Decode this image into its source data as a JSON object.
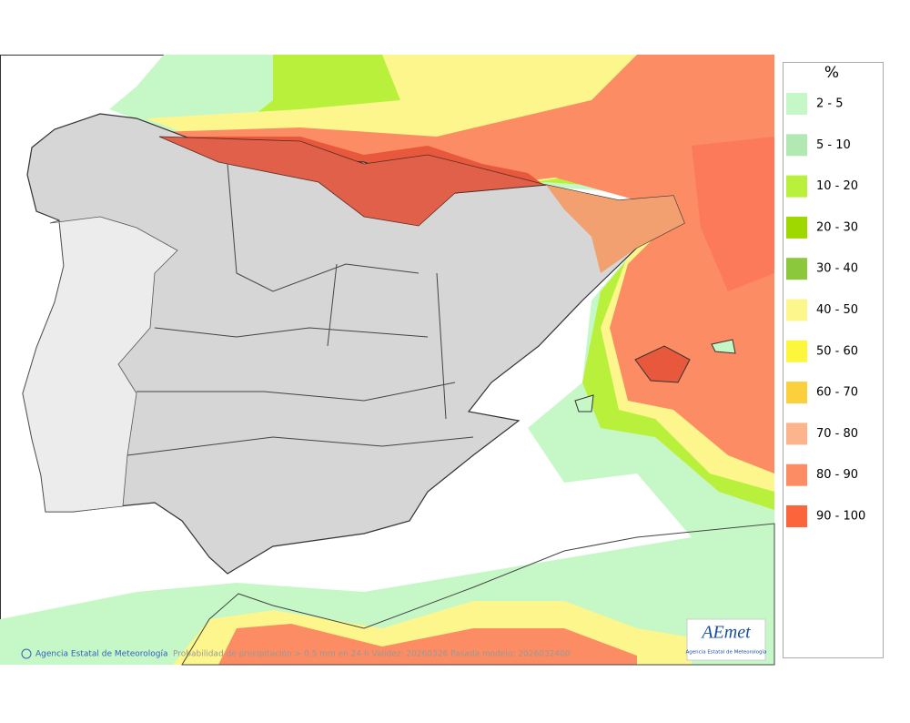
{
  "map": {
    "credit": "Agencia Estatal de Meteorología",
    "caption": "Probabilidad de precipitación > 0.5 mm en 24 h Validez: 20260326 Pasada modelo: 2026032400"
  },
  "legend": {
    "title": "%",
    "items": [
      {
        "label": "2 - 5",
        "color": "#c6f7c6"
      },
      {
        "label": "5 - 10",
        "color": "#b2e8b2"
      },
      {
        "label": "10 - 20",
        "color": "#b8f03c"
      },
      {
        "label": "20 - 30",
        "color": "#9ed800"
      },
      {
        "label": "30 - 40",
        "color": "#8cc83c"
      },
      {
        "label": "40 - 50",
        "color": "#fcf68c"
      },
      {
        "label": "50 - 60",
        "color": "#fcf63c"
      },
      {
        "label": "60 - 70",
        "color": "#fcd03c"
      },
      {
        "label": "70 - 80",
        "color": "#fcb48c"
      },
      {
        "label": "80 - 90",
        "color": "#fc8c64"
      },
      {
        "label": "90 - 100",
        "color": "#fc643c"
      }
    ]
  },
  "logo": {
    "name": "AEmet",
    "subtitle": "Agencia Estatal de Meteorología"
  }
}
